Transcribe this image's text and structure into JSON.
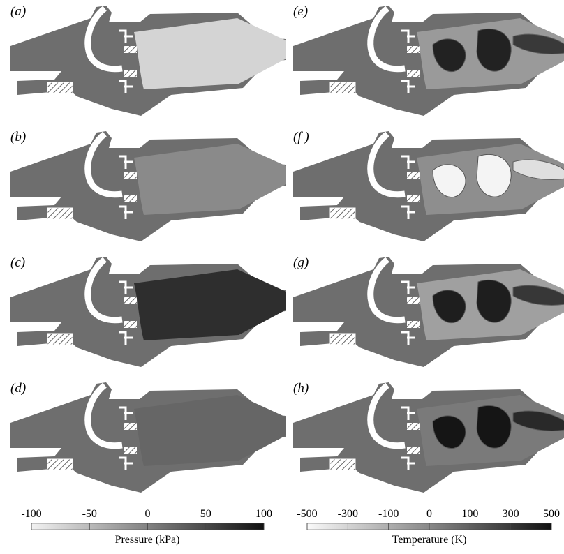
{
  "panels": [
    {
      "label": "(a)"
    },
    {
      "label": "(b)"
    },
    {
      "label": "(c)"
    },
    {
      "label": "(d)"
    },
    {
      "label": "(e)"
    },
    {
      "label": "(f )"
    },
    {
      "label": "(g)"
    },
    {
      "label": "(h)"
    }
  ],
  "colorbars": [
    {
      "title": "Pressure (kPa)",
      "ticks": [
        -100,
        -50,
        0,
        50,
        100
      ]
    },
    {
      "title": "Temperature (K)",
      "ticks": [
        -500,
        -300,
        -100,
        0,
        100,
        300,
        500
      ]
    }
  ]
}
